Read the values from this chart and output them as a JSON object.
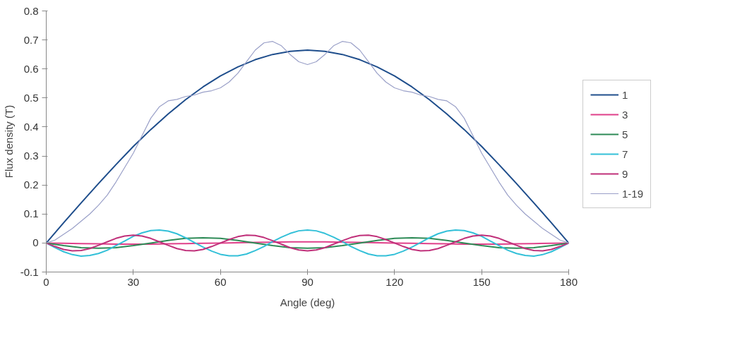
{
  "chart_data": {
    "type": "line",
    "xlabel": "Angle (deg)",
    "ylabel": "Flux density (T)",
    "xlim": [
      0,
      180
    ],
    "xticks": [
      0,
      30,
      60,
      90,
      120,
      150,
      180
    ],
    "ylim": [
      -0.1,
      0.8
    ],
    "yticks": [
      -0.1,
      0,
      0.1,
      0.2,
      0.3,
      0.4,
      0.5,
      0.6,
      0.7,
      0.8
    ],
    "grid": false,
    "legend": "right",
    "marker": "none",
    "line_style": "solid",
    "series": [
      {
        "name": "1",
        "color": "#1f4e8c",
        "x": [
          0,
          6,
          12,
          18,
          24,
          30,
          36,
          42,
          48,
          54,
          60,
          66,
          72,
          78,
          84,
          90,
          96,
          102,
          108,
          114,
          120,
          126,
          132,
          138,
          144,
          150,
          156,
          162,
          168,
          174,
          180
        ],
        "values": [
          0,
          0.07,
          0.138,
          0.205,
          0.27,
          0.333,
          0.391,
          0.445,
          0.494,
          0.538,
          0.576,
          0.607,
          0.632,
          0.65,
          0.661,
          0.665,
          0.661,
          0.65,
          0.632,
          0.607,
          0.576,
          0.538,
          0.494,
          0.445,
          0.391,
          0.333,
          0.27,
          0.205,
          0.138,
          0.07,
          0
        ]
      },
      {
        "name": "3",
        "color": "#e0408a",
        "x": [
          0,
          6,
          12,
          18,
          24,
          30,
          36,
          42,
          48,
          54,
          60,
          66,
          72,
          78,
          84,
          90,
          96,
          102,
          108,
          114,
          120,
          126,
          132,
          138,
          144,
          150,
          156,
          162,
          168,
          174,
          180
        ],
        "values": [
          0,
          -0.001,
          -0.002,
          -0.003,
          -0.004,
          -0.004,
          -0.004,
          -0.003,
          -0.002,
          -0.001,
          0,
          0.001,
          0.002,
          0.003,
          0.004,
          0.004,
          0.004,
          0.003,
          0.002,
          0.001,
          0,
          -0.001,
          -0.002,
          -0.003,
          -0.004,
          -0.004,
          -0.004,
          -0.003,
          -0.002,
          -0.001,
          0
        ]
      },
      {
        "name": "5",
        "color": "#2e8b57",
        "x": [
          0,
          6,
          12,
          18,
          24,
          30,
          36,
          42,
          48,
          54,
          60,
          66,
          72,
          78,
          84,
          90,
          96,
          102,
          108,
          114,
          120,
          126,
          132,
          138,
          144,
          150,
          156,
          162,
          168,
          174,
          180
        ],
        "values": [
          0,
          -0.009,
          -0.016,
          -0.018,
          -0.016,
          -0.009,
          0,
          0.009,
          0.016,
          0.018,
          0.016,
          0.009,
          0,
          -0.009,
          -0.016,
          -0.018,
          -0.016,
          -0.009,
          0,
          0.009,
          0.016,
          0.018,
          0.016,
          0.009,
          0,
          -0.009,
          -0.016,
          -0.018,
          -0.016,
          -0.009,
          0
        ]
      },
      {
        "name": "7",
        "color": "#33c0d8",
        "x": [
          0,
          3,
          6,
          9,
          12,
          15,
          18,
          21,
          24,
          27,
          30,
          33,
          36,
          39,
          42,
          45,
          48,
          51,
          54,
          57,
          60,
          63,
          66,
          69,
          72,
          75,
          78,
          81,
          84,
          87,
          90,
          93,
          96,
          99,
          102,
          105,
          108,
          111,
          114,
          117,
          120,
          123,
          126,
          129,
          132,
          135,
          138,
          141,
          144,
          147,
          150,
          153,
          156,
          159,
          162,
          165,
          168,
          171,
          174,
          177,
          180
        ],
        "values": [
          0,
          -0.016,
          -0.03,
          -0.04,
          -0.045,
          -0.043,
          -0.036,
          -0.025,
          -0.009,
          0.007,
          0.023,
          0.035,
          0.043,
          0.045,
          0.041,
          0.032,
          0.018,
          0.002,
          -0.014,
          -0.028,
          -0.039,
          -0.044,
          -0.044,
          -0.038,
          -0.026,
          -0.012,
          0.005,
          0.02,
          0.033,
          0.042,
          0.045,
          0.042,
          0.033,
          0.02,
          0.005,
          -0.012,
          -0.026,
          -0.038,
          -0.044,
          -0.044,
          -0.039,
          -0.028,
          -0.014,
          0.002,
          0.018,
          0.032,
          0.041,
          0.045,
          0.043,
          0.035,
          0.023,
          0.007,
          -0.009,
          -0.025,
          -0.036,
          -0.043,
          -0.045,
          -0.04,
          -0.03,
          -0.016,
          0
        ]
      },
      {
        "name": "9",
        "color": "#c0307a",
        "x": [
          0,
          3,
          6,
          9,
          12,
          15,
          18,
          21,
          24,
          27,
          30,
          33,
          36,
          39,
          42,
          45,
          48,
          51,
          54,
          57,
          60,
          63,
          66,
          69,
          72,
          75,
          78,
          81,
          84,
          87,
          90,
          93,
          96,
          99,
          102,
          105,
          108,
          111,
          114,
          117,
          120,
          123,
          126,
          129,
          132,
          135,
          138,
          141,
          144,
          147,
          150,
          153,
          156,
          159,
          162,
          165,
          168,
          171,
          174,
          177,
          180
        ],
        "values": [
          0,
          -0.012,
          -0.022,
          -0.027,
          -0.026,
          -0.019,
          -0.008,
          0.004,
          0.016,
          0.024,
          0.027,
          0.024,
          0.016,
          0.004,
          -0.008,
          -0.019,
          -0.026,
          -0.027,
          -0.022,
          -0.012,
          0,
          0.012,
          0.022,
          0.027,
          0.026,
          0.019,
          0.008,
          -0.004,
          -0.016,
          -0.024,
          -0.027,
          -0.024,
          -0.016,
          -0.004,
          0.008,
          0.019,
          0.026,
          0.027,
          0.022,
          0.012,
          0,
          -0.012,
          -0.022,
          -0.027,
          -0.026,
          -0.019,
          -0.008,
          0.004,
          0.016,
          0.024,
          0.027,
          0.024,
          0.016,
          0.004,
          -0.008,
          -0.019,
          -0.026,
          -0.027,
          -0.022,
          -0.012,
          0
        ]
      },
      {
        "name": "1-19",
        "color": "#9aa0c8",
        "x": [
          0,
          3,
          6,
          9,
          12,
          15,
          18,
          21,
          24,
          27,
          30,
          33,
          36,
          39,
          42,
          45,
          48,
          51,
          54,
          57,
          60,
          63,
          66,
          69,
          72,
          75,
          78,
          81,
          84,
          87,
          90,
          93,
          96,
          99,
          102,
          105,
          108,
          111,
          114,
          117,
          120,
          123,
          126,
          129,
          132,
          135,
          138,
          141,
          144,
          147,
          150,
          153,
          156,
          159,
          162,
          165,
          168,
          171,
          174,
          177,
          180
        ],
        "values": [
          0,
          0.01,
          0.03,
          0.05,
          0.075,
          0.1,
          0.13,
          0.165,
          0.21,
          0.26,
          0.31,
          0.37,
          0.43,
          0.47,
          0.49,
          0.495,
          0.505,
          0.51,
          0.52,
          0.525,
          0.535,
          0.555,
          0.585,
          0.625,
          0.665,
          0.69,
          0.695,
          0.68,
          0.65,
          0.625,
          0.615,
          0.625,
          0.65,
          0.68,
          0.695,
          0.69,
          0.665,
          0.625,
          0.585,
          0.555,
          0.535,
          0.525,
          0.52,
          0.51,
          0.505,
          0.495,
          0.49,
          0.47,
          0.43,
          0.37,
          0.31,
          0.26,
          0.21,
          0.165,
          0.13,
          0.1,
          0.075,
          0.05,
          0.03,
          0.01,
          0
        ]
      }
    ]
  }
}
